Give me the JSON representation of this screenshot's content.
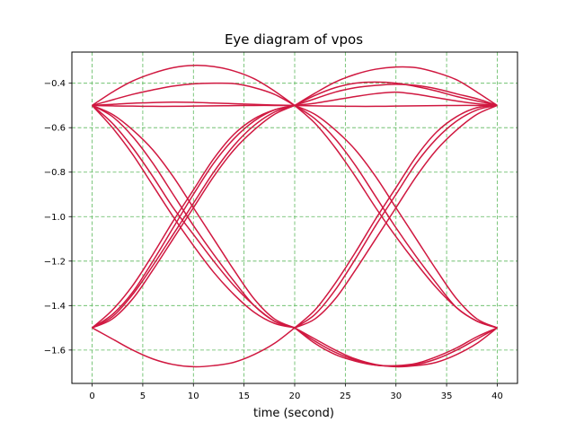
{
  "chart_data": {
    "type": "line",
    "title": "Eye diagram of vpos",
    "xlabel": "time (second)",
    "ylabel": "",
    "xlim": [
      -2,
      42
    ],
    "ylim": [
      -1.75,
      -0.26
    ],
    "x_ticks": [
      0,
      5,
      10,
      15,
      20,
      25,
      30,
      35,
      40
    ],
    "x_tick_labels": [
      "0",
      "5",
      "10",
      "15",
      "20",
      "25",
      "30",
      "35",
      "40"
    ],
    "y_ticks": [
      -0.4,
      -0.6,
      -0.8,
      -1.0,
      -1.2,
      -1.4,
      -1.6
    ],
    "y_tick_labels": [
      "−0.4",
      "−0.6",
      "−0.8",
      "−1.0",
      "−1.2",
      "−1.4",
      "−1.6"
    ],
    "grid": true,
    "grid_color": "#5cb85c",
    "line_color": "#d01840",
    "segment_x": [
      0,
      2,
      4,
      6,
      8,
      10,
      12,
      14,
      16,
      18,
      20
    ],
    "series": [
      {
        "x0": 0,
        "values": [
          -0.5,
          -0.44,
          -0.39,
          -0.355,
          -0.33,
          -0.32,
          -0.325,
          -0.345,
          -0.38,
          -0.435,
          -0.5
        ]
      },
      {
        "x0": 0,
        "values": [
          -0.5,
          -0.475,
          -0.45,
          -0.43,
          -0.413,
          -0.403,
          -0.4,
          -0.402,
          -0.42,
          -0.45,
          -0.5
        ]
      },
      {
        "x0": 0,
        "values": [
          -0.5,
          -0.502,
          -0.503,
          -0.504,
          -0.504,
          -0.503,
          -0.502,
          -0.501,
          -0.5,
          -0.5,
          -0.5
        ]
      },
      {
        "x0": 0,
        "values": [
          -0.5,
          -0.495,
          -0.49,
          -0.487,
          -0.485,
          -0.486,
          -0.489,
          -0.492,
          -0.495,
          -0.498,
          -0.5
        ]
      },
      {
        "x0": 0,
        "values": [
          -0.5,
          -0.54,
          -0.61,
          -0.7,
          -0.82,
          -0.96,
          -1.1,
          -1.24,
          -1.37,
          -1.46,
          -1.5
        ]
      },
      {
        "x0": 0,
        "values": [
          -0.5,
          -0.55,
          -0.64,
          -0.76,
          -0.9,
          -1.04,
          -1.17,
          -1.29,
          -1.4,
          -1.47,
          -1.5
        ]
      },
      {
        "x0": 0,
        "values": [
          -0.5,
          -0.58,
          -0.69,
          -0.82,
          -0.96,
          -1.08,
          -1.2,
          -1.31,
          -1.4,
          -1.47,
          -1.5
        ]
      },
      {
        "x0": 0,
        "values": [
          -0.5,
          -0.6,
          -0.72,
          -0.86,
          -1.0,
          -1.13,
          -1.25,
          -1.35,
          -1.43,
          -1.48,
          -1.5
        ]
      },
      {
        "x0": 0,
        "values": [
          -1.5,
          -1.46,
          -1.37,
          -1.24,
          -1.1,
          -0.96,
          -0.82,
          -0.7,
          -0.61,
          -0.54,
          -0.5
        ]
      },
      {
        "x0": 0,
        "values": [
          -1.5,
          -1.45,
          -1.35,
          -1.22,
          -1.08,
          -0.94,
          -0.8,
          -0.68,
          -0.59,
          -0.53,
          -0.5
        ]
      },
      {
        "x0": 0,
        "values": [
          -1.5,
          -1.44,
          -1.34,
          -1.2,
          -1.05,
          -0.9,
          -0.76,
          -0.65,
          -0.57,
          -0.52,
          -0.5
        ]
      },
      {
        "x0": 0,
        "values": [
          -1.5,
          -1.42,
          -1.31,
          -1.17,
          -1.02,
          -0.88,
          -0.74,
          -0.63,
          -0.56,
          -0.52,
          -0.5
        ]
      },
      {
        "x0": 0,
        "values": [
          -1.5,
          -1.55,
          -1.6,
          -1.64,
          -1.665,
          -1.675,
          -1.67,
          -1.655,
          -1.62,
          -1.57,
          -1.5
        ]
      },
      {
        "x0": 20,
        "values": [
          -0.5,
          -0.445,
          -0.395,
          -0.36,
          -0.337,
          -0.327,
          -0.33,
          -0.352,
          -0.385,
          -0.44,
          -0.5
        ]
      },
      {
        "x0": 20,
        "values": [
          -0.5,
          -0.455,
          -0.42,
          -0.4,
          -0.395,
          -0.4,
          -0.415,
          -0.435,
          -0.46,
          -0.48,
          -0.5
        ]
      },
      {
        "x0": 20,
        "values": [
          -0.5,
          -0.47,
          -0.44,
          -0.42,
          -0.41,
          -0.405,
          -0.41,
          -0.425,
          -0.448,
          -0.47,
          -0.5
        ]
      },
      {
        "x0": 20,
        "values": [
          -0.5,
          -0.49,
          -0.475,
          -0.46,
          -0.447,
          -0.44,
          -0.45,
          -0.465,
          -0.48,
          -0.492,
          -0.5
        ]
      },
      {
        "x0": 20,
        "values": [
          -0.5,
          -0.502,
          -0.503,
          -0.504,
          -0.504,
          -0.503,
          -0.502,
          -0.501,
          -0.5,
          -0.5,
          -0.5
        ]
      },
      {
        "x0": 20,
        "values": [
          -0.5,
          -0.54,
          -0.61,
          -0.7,
          -0.82,
          -0.96,
          -1.1,
          -1.24,
          -1.37,
          -1.46,
          -1.5
        ]
      },
      {
        "x0": 20,
        "values": [
          -0.5,
          -0.56,
          -0.65,
          -0.77,
          -0.91,
          -1.05,
          -1.18,
          -1.3,
          -1.41,
          -1.47,
          -1.5
        ]
      },
      {
        "x0": 20,
        "values": [
          -0.5,
          -0.58,
          -0.69,
          -0.82,
          -0.96,
          -1.09,
          -1.21,
          -1.32,
          -1.41,
          -1.47,
          -1.5
        ]
      },
      {
        "x0": 20,
        "values": [
          -1.5,
          -1.46,
          -1.37,
          -1.24,
          -1.1,
          -0.96,
          -0.82,
          -0.7,
          -0.61,
          -0.54,
          -0.5
        ]
      },
      {
        "x0": 20,
        "values": [
          -1.5,
          -1.44,
          -1.33,
          -1.19,
          -1.04,
          -0.9,
          -0.76,
          -0.65,
          -0.57,
          -0.52,
          -0.5
        ]
      },
      {
        "x0": 20,
        "values": [
          -1.5,
          -1.42,
          -1.3,
          -1.16,
          -1.01,
          -0.87,
          -0.73,
          -0.62,
          -0.55,
          -0.51,
          -0.5
        ]
      },
      {
        "x0": 20,
        "values": [
          -1.5,
          -1.55,
          -1.6,
          -1.64,
          -1.665,
          -1.675,
          -1.67,
          -1.655,
          -1.62,
          -1.57,
          -1.5
        ]
      },
      {
        "x0": 20,
        "values": [
          -1.5,
          -1.56,
          -1.61,
          -1.645,
          -1.668,
          -1.672,
          -1.665,
          -1.64,
          -1.6,
          -1.55,
          -1.5
        ]
      },
      {
        "x0": 20,
        "values": [
          -1.5,
          -1.57,
          -1.62,
          -1.65,
          -1.668,
          -1.67,
          -1.66,
          -1.63,
          -1.59,
          -1.54,
          -1.5
        ]
      }
    ]
  }
}
